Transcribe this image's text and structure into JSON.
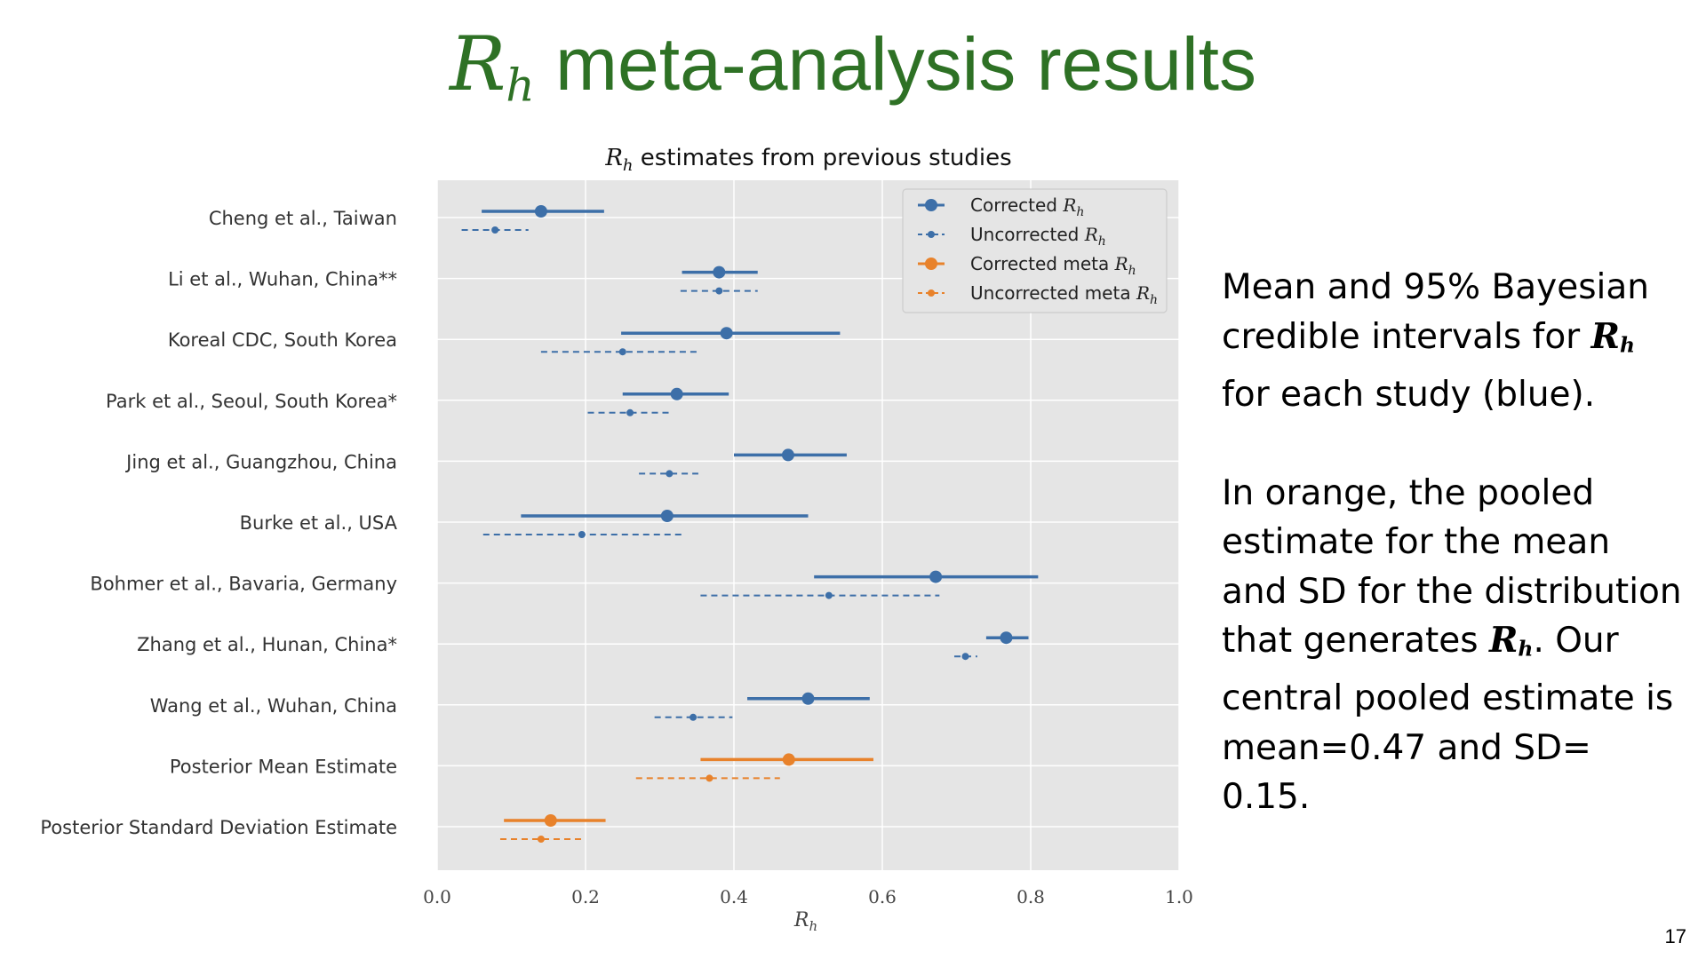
{
  "slide": {
    "title_symbol": "R",
    "title_sub": "h",
    "title_rest": " meta-analysis results",
    "page_number": "17",
    "paragraph1_part1": "Mean and 95% Bayesian credible intervals for ",
    "paragraph1_part2": " for each study (blue).",
    "paragraph2_part1": "In orange, the pooled estimate for the mean and SD for the distribution that generates ",
    "paragraph2_part2": ". Our central pooled estimate is mean=0.47 and SD= 0.15.",
    "symbol_main": "R",
    "symbol_sub": "h"
  },
  "chart_data": {
    "type": "forest",
    "title_symbol": "R",
    "title_sub": "h",
    "title_rest": " estimates from previous studies",
    "xlabel_symbol": "R",
    "xlabel_sub": "h",
    "xlim": [
      0.0,
      1.0
    ],
    "xticks": [
      "0.0",
      "0.2",
      "0.4",
      "0.6",
      "0.8",
      "1.0"
    ],
    "grid": true,
    "legend_position": "top-right",
    "legend": [
      {
        "label": "Corrected ",
        "sub_symbol": "R",
        "sub": "h",
        "color": "#3d6fa8",
        "style": "solid",
        "marker": "large"
      },
      {
        "label": "Uncorrected ",
        "sub_symbol": "R",
        "sub": "h",
        "color": "#3d6fa8",
        "style": "dashed",
        "marker": "small"
      },
      {
        "label": "Corrected meta ",
        "sub_symbol": "R",
        "sub": "h",
        "color": "#e8822b",
        "style": "solid",
        "marker": "large"
      },
      {
        "label": "Uncorrected meta ",
        "sub_symbol": "R",
        "sub": "h",
        "color": "#e8822b",
        "style": "dashed",
        "marker": "small"
      }
    ],
    "colors": {
      "study": "#3d6fa8",
      "meta": "#e8822b",
      "panel": "#e5e5e5"
    },
    "rows": [
      {
        "label": "Cheng et al., Taiwan",
        "group": "study",
        "corrected": {
          "mean": 0.14,
          "low": 0.06,
          "high": 0.225
        },
        "uncorrected": {
          "mean": 0.078,
          "low": 0.033,
          "high": 0.123
        }
      },
      {
        "label": "Li et al., Wuhan, China**",
        "group": "study",
        "corrected": {
          "mean": 0.38,
          "low": 0.33,
          "high": 0.432
        },
        "uncorrected": {
          "mean": 0.38,
          "low": 0.328,
          "high": 0.432
        }
      },
      {
        "label": "Koreal CDC, South Korea",
        "group": "study",
        "corrected": {
          "mean": 0.39,
          "low": 0.248,
          "high": 0.543
        },
        "uncorrected": {
          "mean": 0.25,
          "low": 0.14,
          "high": 0.355
        }
      },
      {
        "label": "Park et al., Seoul, South Korea*",
        "group": "study",
        "corrected": {
          "mean": 0.323,
          "low": 0.25,
          "high": 0.393
        },
        "uncorrected": {
          "mean": 0.26,
          "low": 0.203,
          "high": 0.317
        }
      },
      {
        "label": "Jing et al., Guangzhou, China",
        "group": "study",
        "corrected": {
          "mean": 0.473,
          "low": 0.4,
          "high": 0.552
        },
        "uncorrected": {
          "mean": 0.313,
          "low": 0.272,
          "high": 0.352
        }
      },
      {
        "label": "Burke et al., USA",
        "group": "study",
        "corrected": {
          "mean": 0.31,
          "low": 0.113,
          "high": 0.5
        },
        "uncorrected": {
          "mean": 0.195,
          "low": 0.062,
          "high": 0.335
        }
      },
      {
        "label": "Bohmer et al., Bavaria, Germany",
        "group": "study",
        "corrected": {
          "mean": 0.672,
          "low": 0.508,
          "high": 0.81
        },
        "uncorrected": {
          "mean": 0.528,
          "low": 0.355,
          "high": 0.677
        }
      },
      {
        "label": "Zhang et al., Hunan, China*",
        "group": "study",
        "corrected": {
          "mean": 0.767,
          "low": 0.74,
          "high": 0.797
        },
        "uncorrected": {
          "mean": 0.712,
          "low": 0.697,
          "high": 0.728
        }
      },
      {
        "label": "Wang et al., Wuhan, China",
        "group": "study",
        "corrected": {
          "mean": 0.5,
          "low": 0.418,
          "high": 0.583
        },
        "uncorrected": {
          "mean": 0.345,
          "low": 0.293,
          "high": 0.398
        }
      },
      {
        "label": "Posterior Mean Estimate",
        "group": "meta",
        "corrected": {
          "mean": 0.474,
          "low": 0.355,
          "high": 0.588
        },
        "uncorrected": {
          "mean": 0.367,
          "low": 0.268,
          "high": 0.462
        }
      },
      {
        "label": "Posterior Standard Deviation Estimate",
        "group": "meta",
        "corrected": {
          "mean": 0.153,
          "low": 0.09,
          "high": 0.227
        },
        "uncorrected": {
          "mean": 0.14,
          "low": 0.085,
          "high": 0.198
        }
      }
    ]
  }
}
